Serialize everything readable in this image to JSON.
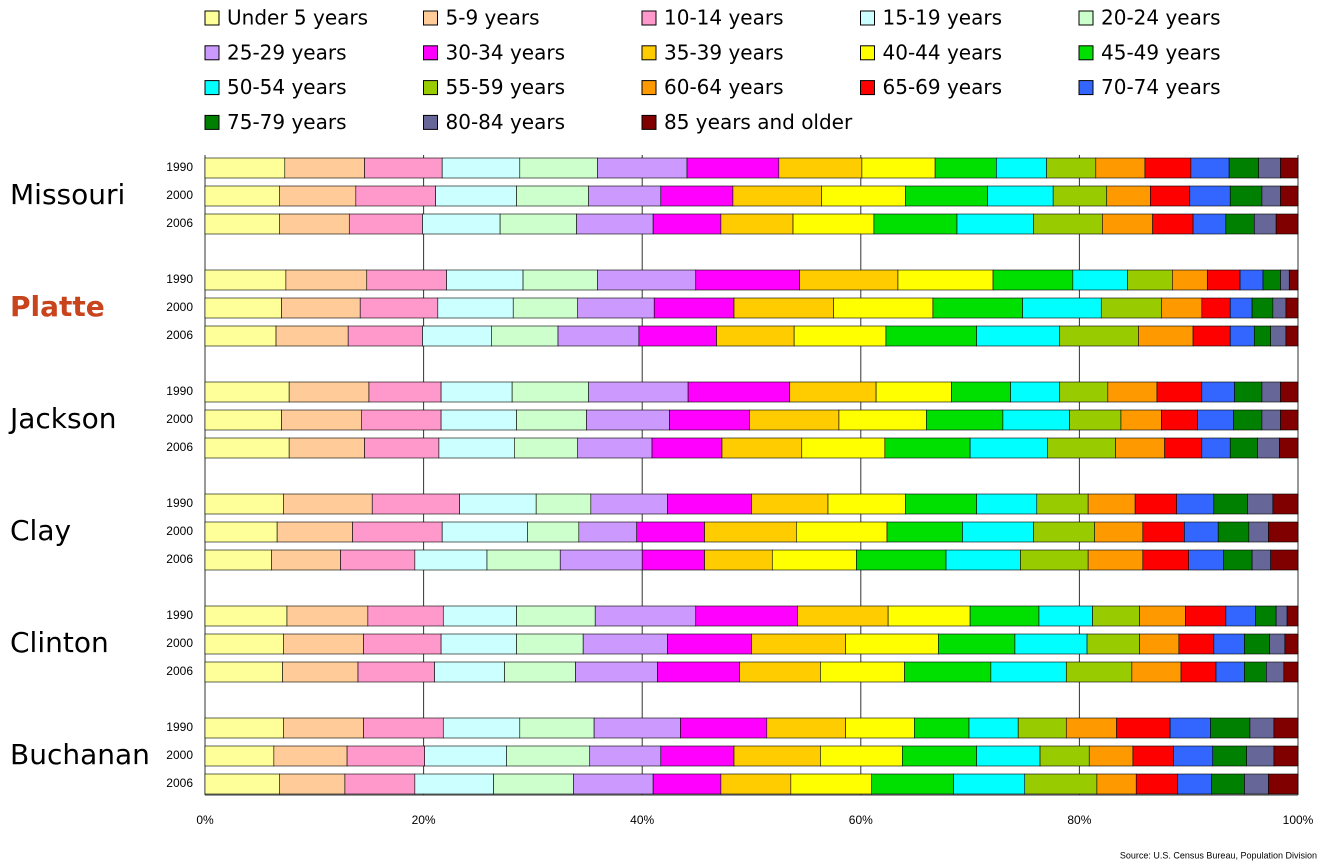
{
  "chart_data": {
    "type": "stacked-barh",
    "groups": [
      {
        "name": "Missouri"
      },
      {
        "name": "Platte",
        "color": "#c8441c"
      },
      {
        "name": "Jackson"
      },
      {
        "name": "Clay"
      },
      {
        "name": "Clinton"
      },
      {
        "name": "Buchanan"
      }
    ],
    "categories": [
      "1990",
      "2000",
      "2006",
      "1990",
      "2000",
      "2006",
      "1990",
      "2000",
      "2006",
      "1990",
      "2000",
      "2006",
      "1990",
      "2000",
      "2006",
      "1990",
      "2000",
      "2006"
    ],
    "series": [
      {
        "name": "Under 5 years",
        "color": "#ffff99",
        "values": [
          7.3,
          6.8,
          6.8,
          7.4,
          7.0,
          6.5,
          7.7,
          7.0,
          7.7,
          7.2,
          6.6,
          6.1,
          7.5,
          7.2,
          7.1,
          7.2,
          6.3,
          6.8
        ]
      },
      {
        "name": "5-9 years",
        "color": "#ffcc99",
        "values": [
          7.3,
          7.0,
          6.4,
          7.4,
          7.2,
          6.6,
          7.3,
          7.3,
          6.9,
          8.1,
          6.9,
          6.3,
          7.4,
          7.3,
          6.9,
          7.3,
          6.7,
          6.0
        ]
      },
      {
        "name": "10-14 years",
        "color": "#ff99cc",
        "values": [
          7.1,
          7.3,
          6.7,
          7.3,
          7.1,
          6.8,
          6.6,
          7.3,
          6.8,
          8.0,
          8.2,
          6.8,
          6.9,
          7.1,
          7.0,
          7.3,
          7.1,
          6.4
        ]
      },
      {
        "name": "15-19 years",
        "color": "#ccffff",
        "values": [
          7.1,
          7.4,
          7.1,
          7.0,
          6.9,
          6.3,
          6.5,
          6.9,
          6.9,
          7.0,
          7.8,
          6.6,
          6.7,
          6.9,
          6.4,
          7.0,
          7.5,
          7.2
        ]
      },
      {
        "name": "20-24 years",
        "color": "#ccffcc",
        "values": [
          7.1,
          6.6,
          7.0,
          6.8,
          5.9,
          6.1,
          7.0,
          6.4,
          5.8,
          5.0,
          4.7,
          6.7,
          7.2,
          6.1,
          6.5,
          6.8,
          7.6,
          7.3
        ]
      },
      {
        "name": "25-29 years",
        "color": "#cc99ff",
        "values": [
          8.2,
          6.6,
          7.0,
          9.0,
          7.0,
          7.4,
          9.1,
          7.6,
          6.8,
          7.0,
          5.3,
          7.5,
          9.2,
          7.7,
          7.5,
          7.9,
          6.5,
          7.3
        ]
      },
      {
        "name": "30-34 years",
        "color": "#ff00ff",
        "values": [
          8.4,
          6.6,
          6.2,
          9.5,
          7.3,
          7.1,
          9.3,
          7.3,
          6.4,
          7.7,
          6.2,
          5.7,
          9.3,
          7.7,
          7.5,
          7.9,
          6.7,
          6.2
        ]
      },
      {
        "name": "35-39 years",
        "color": "#ffcc00",
        "values": [
          7.6,
          8.1,
          6.6,
          9.0,
          9.1,
          7.1,
          7.9,
          8.2,
          7.3,
          7.0,
          8.4,
          6.2,
          8.3,
          8.6,
          7.4,
          7.2,
          7.9,
          6.4
        ]
      },
      {
        "name": "40-44 years",
        "color": "#ffff00",
        "values": [
          6.7,
          7.7,
          7.4,
          8.7,
          9.1,
          8.4,
          6.9,
          8.0,
          7.6,
          7.1,
          8.3,
          7.7,
          7.5,
          8.5,
          7.7,
          6.3,
          7.5,
          7.4
        ]
      },
      {
        "name": "45-49 years",
        "color": "#00e000",
        "values": [
          5.6,
          7.5,
          7.6,
          7.3,
          8.2,
          8.3,
          5.4,
          7.0,
          7.8,
          6.5,
          6.9,
          8.2,
          6.3,
          7.0,
          7.9,
          5.0,
          6.8,
          7.5
        ]
      },
      {
        "name": "50-54 years",
        "color": "#00ffff",
        "values": [
          4.6,
          6.0,
          7.0,
          5.0,
          7.2,
          7.6,
          4.5,
          6.1,
          7.1,
          5.5,
          6.5,
          6.8,
          4.9,
          6.6,
          6.9,
          4.5,
          5.8,
          6.5
        ]
      },
      {
        "name": "55-59 years",
        "color": "#99cc00",
        "values": [
          4.5,
          4.9,
          6.3,
          4.1,
          5.5,
          7.2,
          4.4,
          4.7,
          6.2,
          4.7,
          5.6,
          6.2,
          4.3,
          4.8,
          6.0,
          4.4,
          4.5,
          6.6
        ]
      },
      {
        "name": "60-64 years",
        "color": "#ff9900",
        "values": [
          4.5,
          4.0,
          4.6,
          3.2,
          3.7,
          5.0,
          4.5,
          3.7,
          4.5,
          4.3,
          4.4,
          5.0,
          4.2,
          3.6,
          4.5,
          4.6,
          4.0,
          3.6
        ]
      },
      {
        "name": "65-69 years",
        "color": "#ff0000",
        "values": [
          4.2,
          3.6,
          3.7,
          3.0,
          2.6,
          3.4,
          4.1,
          3.3,
          3.4,
          3.8,
          3.8,
          4.2,
          3.7,
          3.2,
          3.2,
          4.9,
          3.7,
          3.8
        ]
      },
      {
        "name": "70-74 years",
        "color": "#3366ff",
        "values": [
          3.5,
          3.7,
          3.0,
          2.1,
          2.0,
          2.2,
          3.0,
          3.3,
          2.6,
          3.4,
          3.1,
          3.2,
          2.7,
          2.8,
          2.6,
          3.7,
          3.6,
          3.1
        ]
      },
      {
        "name": "75-79 years",
        "color": "#008000",
        "values": [
          2.7,
          2.9,
          2.6,
          1.6,
          1.9,
          1.5,
          2.5,
          2.6,
          2.5,
          3.1,
          2.8,
          2.6,
          1.9,
          2.3,
          2.0,
          3.6,
          3.1,
          3.0
        ]
      },
      {
        "name": "80-84 years",
        "color": "#666699",
        "values": [
          2.0,
          1.7,
          2.0,
          0.8,
          1.2,
          1.4,
          1.7,
          1.7,
          2.0,
          2.3,
          1.8,
          1.7,
          1.0,
          1.4,
          1.6,
          2.2,
          2.5,
          2.2
        ]
      },
      {
        "name": "85 years and older",
        "color": "#800000",
        "values": [
          1.6,
          1.6,
          2.0,
          0.8,
          1.1,
          1.1,
          1.6,
          1.6,
          1.7,
          2.3,
          2.7,
          2.5,
          1.0,
          1.2,
          1.3,
          2.2,
          2.2,
          2.7
        ]
      }
    ],
    "xlim": [
      0,
      100
    ],
    "xticks": [
      {
        "value": 0,
        "label": "0%"
      },
      {
        "value": 20,
        "label": "20%"
      },
      {
        "value": 40,
        "label": "40%"
      },
      {
        "value": 60,
        "label": "60%"
      },
      {
        "value": 80,
        "label": "80%"
      },
      {
        "value": 100,
        "label": "100%"
      }
    ],
    "grid": true,
    "source": "Source: U.S. Census Bureau, Population Division"
  }
}
